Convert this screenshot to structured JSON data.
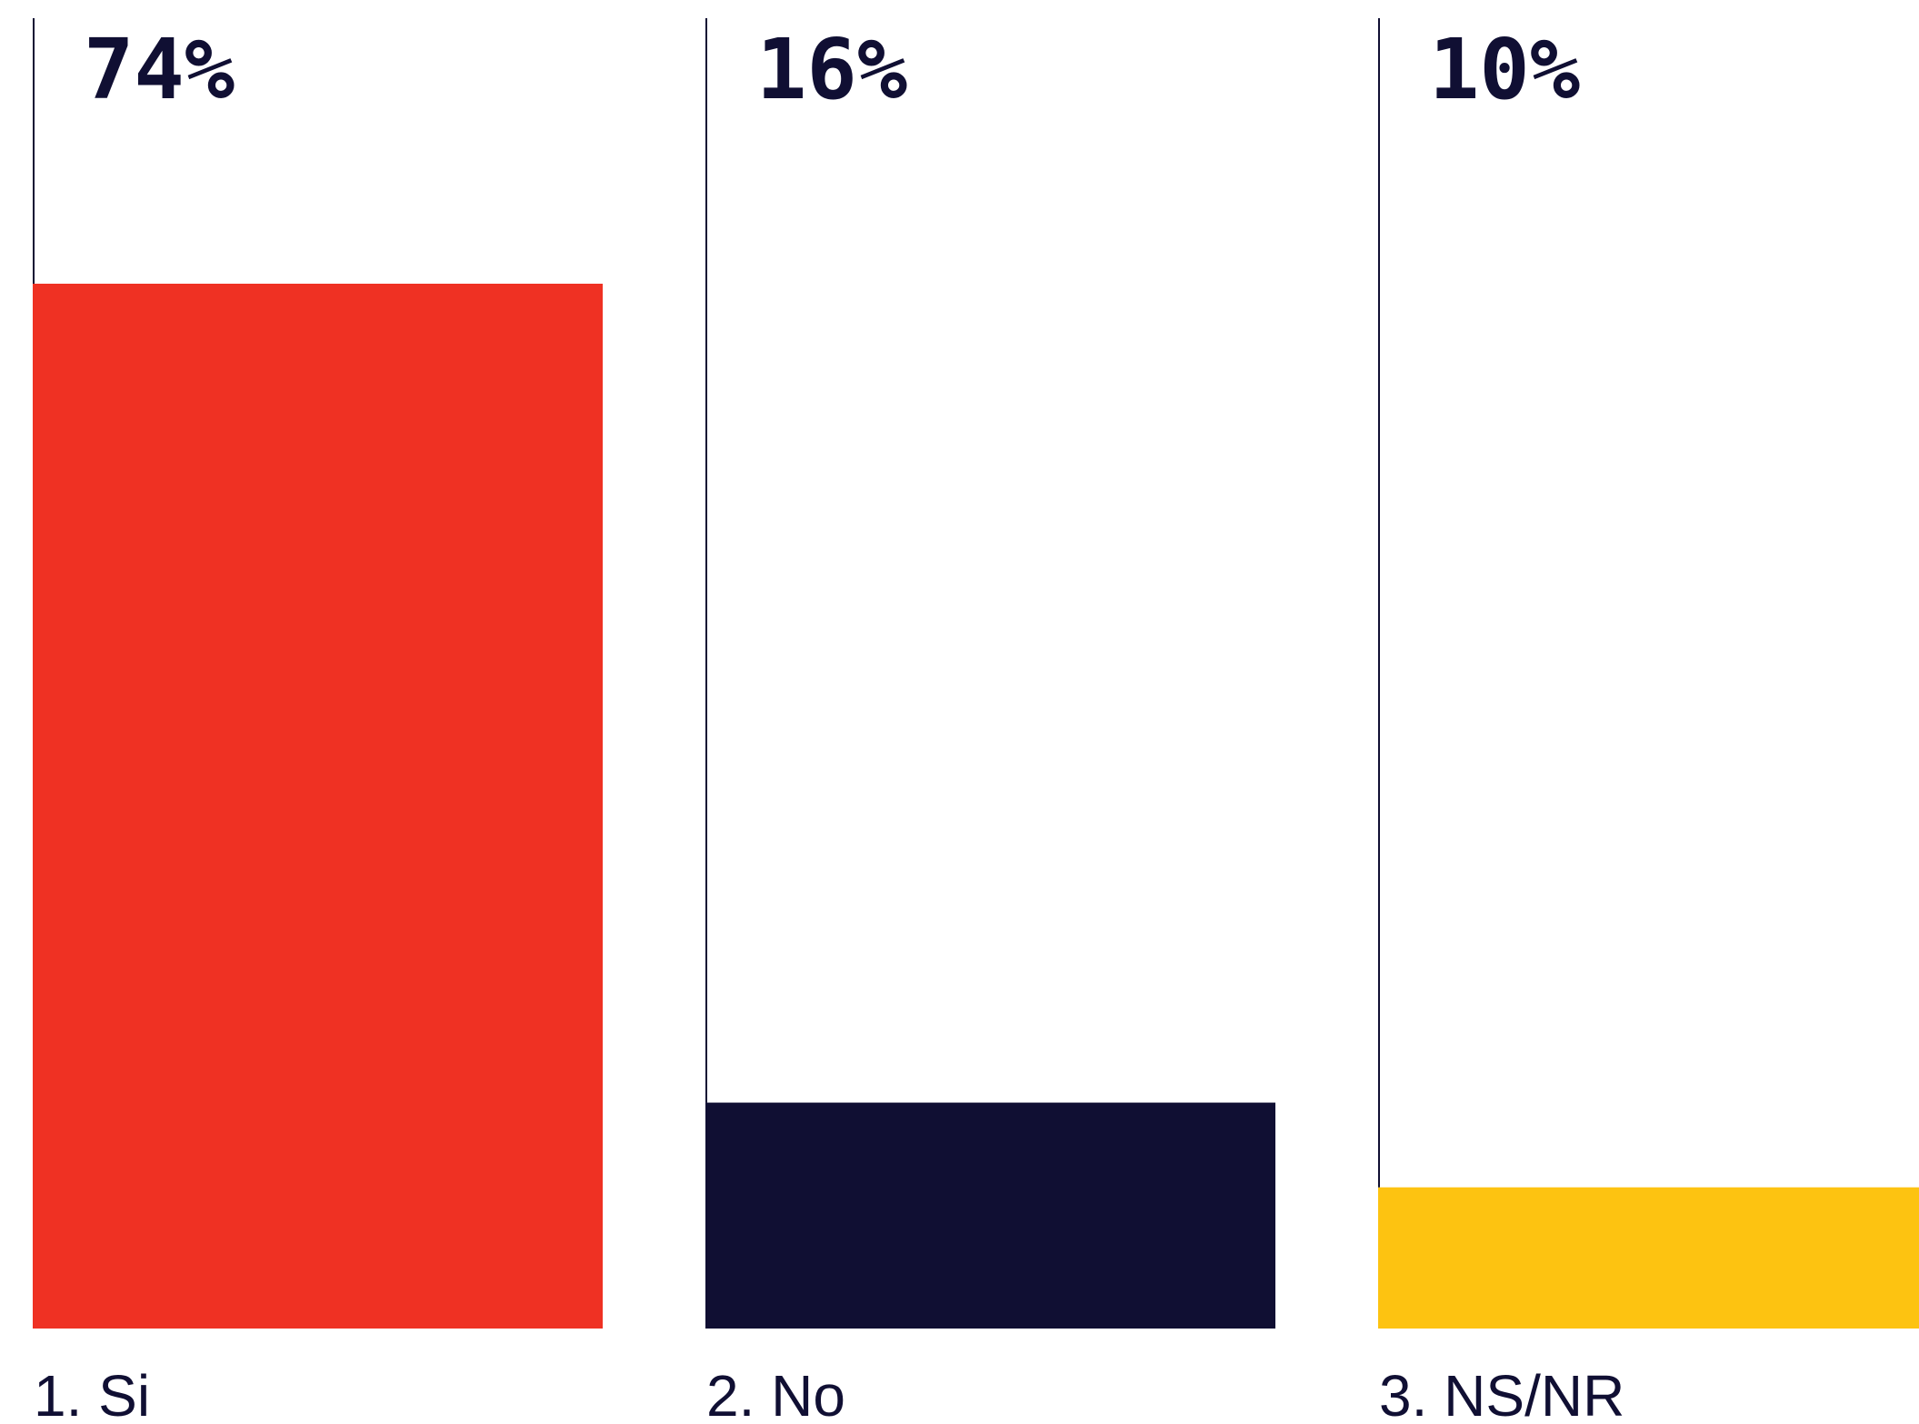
{
  "chart_data": {
    "type": "bar",
    "categories": [
      "1. Si",
      "2. No",
      "3. NS/NR"
    ],
    "values": [
      74,
      16,
      10
    ],
    "value_labels": [
      "74%",
      "16%",
      "10%"
    ],
    "colors": [
      "#ef3123",
      "#100f33",
      "#fdc311"
    ],
    "ylim": [
      0,
      74
    ],
    "grid": false,
    "legend": "none"
  }
}
